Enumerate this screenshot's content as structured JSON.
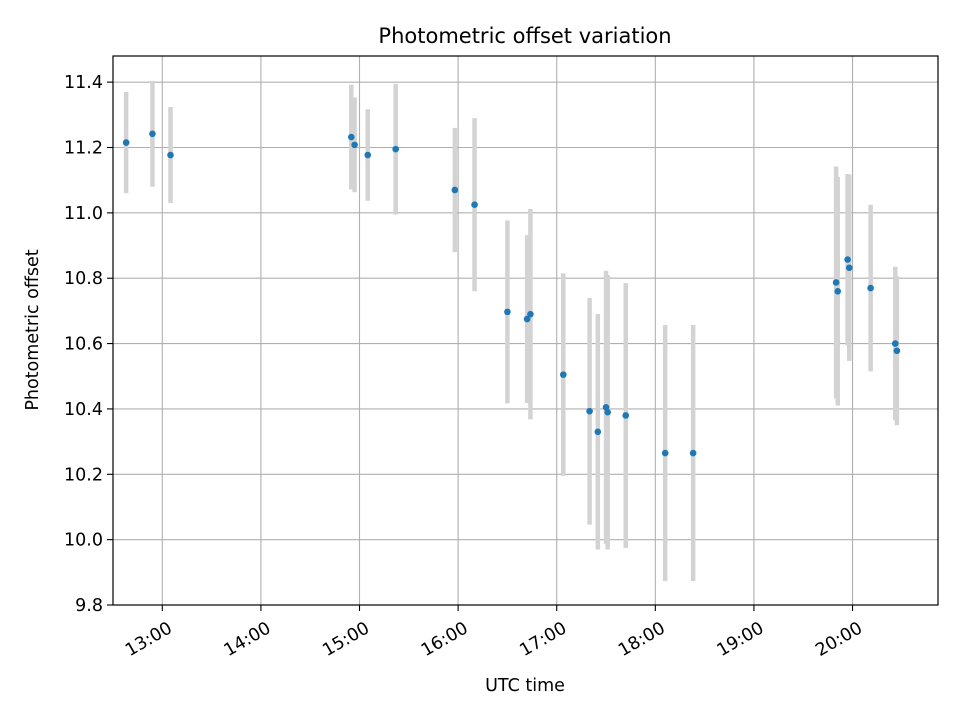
{
  "chart_data": {
    "type": "scatter",
    "title": "Photometric offset variation",
    "xlabel": "UTC time",
    "ylabel": "Photometric offset",
    "x_unit": "hours UTC",
    "xlim": [
      "12:30",
      "20:52"
    ],
    "ylim": [
      9.8,
      11.48
    ],
    "x_ticks": [
      "13:00",
      "14:00",
      "15:00",
      "16:00",
      "17:00",
      "18:00",
      "19:00",
      "20:00"
    ],
    "y_ticks": [
      "9.8",
      "10.0",
      "10.2",
      "10.4",
      "10.6",
      "10.8",
      "11.0",
      "11.2",
      "11.4"
    ],
    "grid": true,
    "colors": {
      "points": "#1f77b4",
      "errorbars": "#d3d3d3",
      "grid": "#b0b0b0"
    },
    "points": [
      {
        "x": "12:38",
        "y": 11.215,
        "err": 0.155
      },
      {
        "x": "12:54",
        "y": 11.242,
        "err": 0.162
      },
      {
        "x": "13:05",
        "y": 11.177,
        "err": 0.147
      },
      {
        "x": "14:55",
        "y": 11.232,
        "err": 0.16
      },
      {
        "x": "14:57",
        "y": 11.208,
        "err": 0.145
      },
      {
        "x": "15:05",
        "y": 11.177,
        "err": 0.14
      },
      {
        "x": "15:22",
        "y": 11.195,
        "err": 0.2
      },
      {
        "x": "15:58",
        "y": 11.07,
        "err": 0.19
      },
      {
        "x": "16:10",
        "y": 11.025,
        "err": 0.265
      },
      {
        "x": "16:30",
        "y": 10.697,
        "err": 0.28
      },
      {
        "x": "16:42",
        "y": 10.675,
        "err": 0.257
      },
      {
        "x": "16:44",
        "y": 10.69,
        "err": 0.322
      },
      {
        "x": "17:04",
        "y": 10.505,
        "err": 0.31
      },
      {
        "x": "17:20",
        "y": 10.393,
        "err": 0.347
      },
      {
        "x": "17:25",
        "y": 10.33,
        "err": 0.36
      },
      {
        "x": "17:30",
        "y": 10.405,
        "err": 0.418
      },
      {
        "x": "17:31",
        "y": 10.39,
        "err": 0.42
      },
      {
        "x": "17:42",
        "y": 10.38,
        "err": 0.405
      },
      {
        "x": "18:06",
        "y": 10.265,
        "err": 0.392
      },
      {
        "x": "18:23",
        "y": 10.265,
        "err": 0.392
      },
      {
        "x": "19:50",
        "y": 10.787,
        "err": 0.355
      },
      {
        "x": "19:51",
        "y": 10.76,
        "err": 0.35
      },
      {
        "x": "19:57",
        "y": 10.857,
        "err": 0.262
      },
      {
        "x": "19:58",
        "y": 10.832,
        "err": 0.285
      },
      {
        "x": "20:11",
        "y": 10.77,
        "err": 0.255
      },
      {
        "x": "20:26",
        "y": 10.6,
        "err": 0.235
      },
      {
        "x": "20:27",
        "y": 10.578,
        "err": 0.228
      }
    ]
  }
}
